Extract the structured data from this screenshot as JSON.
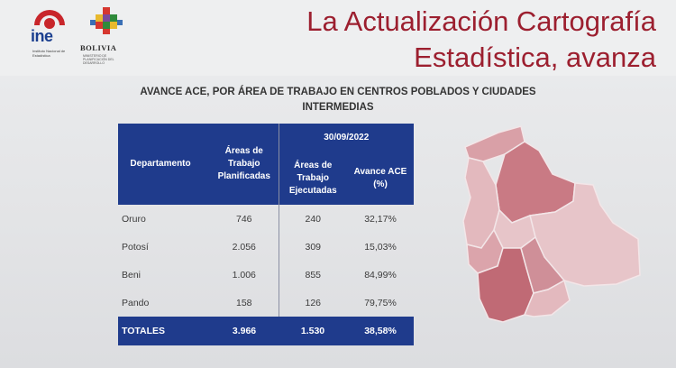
{
  "header": {
    "title_line1": "La Actualización Cartografía",
    "title_line2": "Estadística, avanza",
    "ine_logo_text": "ine",
    "ine_logo_sub": "Instituto Nacional de Estadística",
    "bolivia_logo_text": "BOLIVIA",
    "bolivia_logo_sub": "MINISTERIO DE PLANIFICACIÓN DEL DESARROLLO"
  },
  "subtitle": {
    "line1": "AVANCE ACE, POR ÁREA DE TRABAJO EN CENTROS POBLADOS Y CIUDADES",
    "line2": "INTERMEDIAS"
  },
  "table": {
    "date_header": "30/09/2022",
    "col_departamento": "Departamento",
    "col_planificadas": "Áreas de Trabajo Planificadas",
    "col_ejecutadas": "Áreas de Trabajo Ejecutadas",
    "col_avance": "Avance ACE (%)",
    "rows": [
      {
        "dept": "Oruro",
        "plan": "746",
        "ejec": "240",
        "avance": "32,17%"
      },
      {
        "dept": "Potosí",
        "plan": "2.056",
        "ejec": "309",
        "avance": "15,03%"
      },
      {
        "dept": "Beni",
        "plan": "1.006",
        "ejec": "855",
        "avance": "84,99%"
      },
      {
        "dept": "Pando",
        "plan": "158",
        "ejec": "126",
        "avance": "79,75%"
      }
    ],
    "total": {
      "dept": "TOTALES",
      "plan": "3.966",
      "ejec": "1.530",
      "avance": "38,58%"
    }
  },
  "colors": {
    "title": "#9c1f2f",
    "table_header": "#1f3b8c",
    "map_dark": "#c06a75",
    "map_mid": "#d9a0a7",
    "map_light": "#e7c5c9"
  },
  "icons": [
    "ine-logo-icon",
    "bolivia-shield-icon",
    "bolivia-map-icon"
  ]
}
